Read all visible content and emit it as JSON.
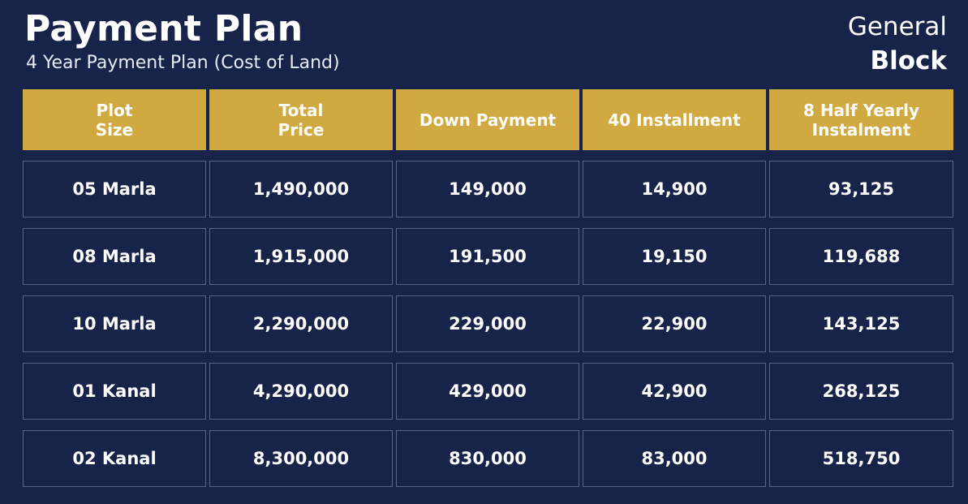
{
  "header": {
    "title": "Payment Plan",
    "subtitle": "4 Year Payment Plan (Cost of Land)",
    "block_line1": "General",
    "block_line2": "Block"
  },
  "table": {
    "columns": [
      "Plot\nSize",
      "Total\nPrice",
      "Down Payment",
      "40 Installment",
      "8 Half Yearly\nInstalment"
    ],
    "rows": [
      [
        "05 Marla",
        "1,490,000",
        "149,000",
        "14,900",
        "93,125"
      ],
      [
        "08 Marla",
        "1,915,000",
        "191,500",
        "19,150",
        "119,688"
      ],
      [
        "10 Marla",
        "2,290,000",
        "229,000",
        "22,900",
        "143,125"
      ],
      [
        "01 Kanal",
        "4,290,000",
        "429,000",
        "42,900",
        "268,125"
      ],
      [
        "02 Kanal",
        "8,300,000",
        "830,000",
        "83,000",
        "518,750"
      ]
    ]
  },
  "colors": {
    "background": "#18234a",
    "header_gold": "#d0aa41",
    "cell_border": "#5a6488",
    "text": "#ffffff"
  }
}
